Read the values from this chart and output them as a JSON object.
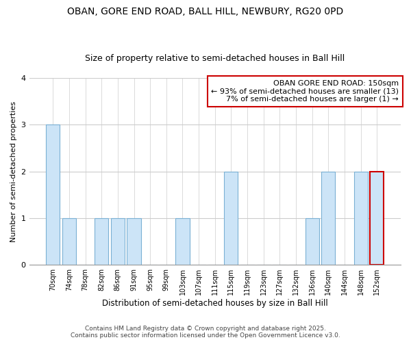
{
  "title": "OBAN, GORE END ROAD, BALL HILL, NEWBURY, RG20 0PD",
  "subtitle": "Size of property relative to semi-detached houses in Ball Hill",
  "xlabel": "Distribution of semi-detached houses by size in Ball Hill",
  "ylabel": "Number of semi-detached properties",
  "categories": [
    "70sqm",
    "74sqm",
    "78sqm",
    "82sqm",
    "86sqm",
    "91sqm",
    "95sqm",
    "99sqm",
    "103sqm",
    "107sqm",
    "111sqm",
    "115sqm",
    "119sqm",
    "123sqm",
    "127sqm",
    "132sqm",
    "136sqm",
    "140sqm",
    "144sqm",
    "148sqm",
    "152sqm"
  ],
  "values": [
    3,
    1,
    0,
    1,
    1,
    1,
    0,
    0,
    1,
    0,
    0,
    2,
    0,
    0,
    0,
    0,
    1,
    2,
    0,
    2,
    2
  ],
  "bar_color": "#cce4f7",
  "bar_edgecolor": "#7ab0d4",
  "highlight_index": 20,
  "highlight_bar_edgecolor": "#cc0000",
  "ylim": [
    0,
    4
  ],
  "yticks": [
    0,
    1,
    2,
    3,
    4
  ],
  "background_color": "#ffffff",
  "grid_color": "#cccccc",
  "annotation_title": "OBAN GORE END ROAD: 150sqm",
  "annotation_line1": "← 93% of semi-detached houses are smaller (13)",
  "annotation_line2": "7% of semi-detached houses are larger (1) →",
  "annotation_box_edgecolor": "#cc0000",
  "footer1": "Contains HM Land Registry data © Crown copyright and database right 2025.",
  "footer2": "Contains public sector information licensed under the Open Government Licence v3.0.",
  "title_fontsize": 10,
  "subtitle_fontsize": 9,
  "xlabel_fontsize": 8.5,
  "ylabel_fontsize": 8,
  "tick_fontsize": 7,
  "annotation_fontsize": 8,
  "footer_fontsize": 6.5
}
